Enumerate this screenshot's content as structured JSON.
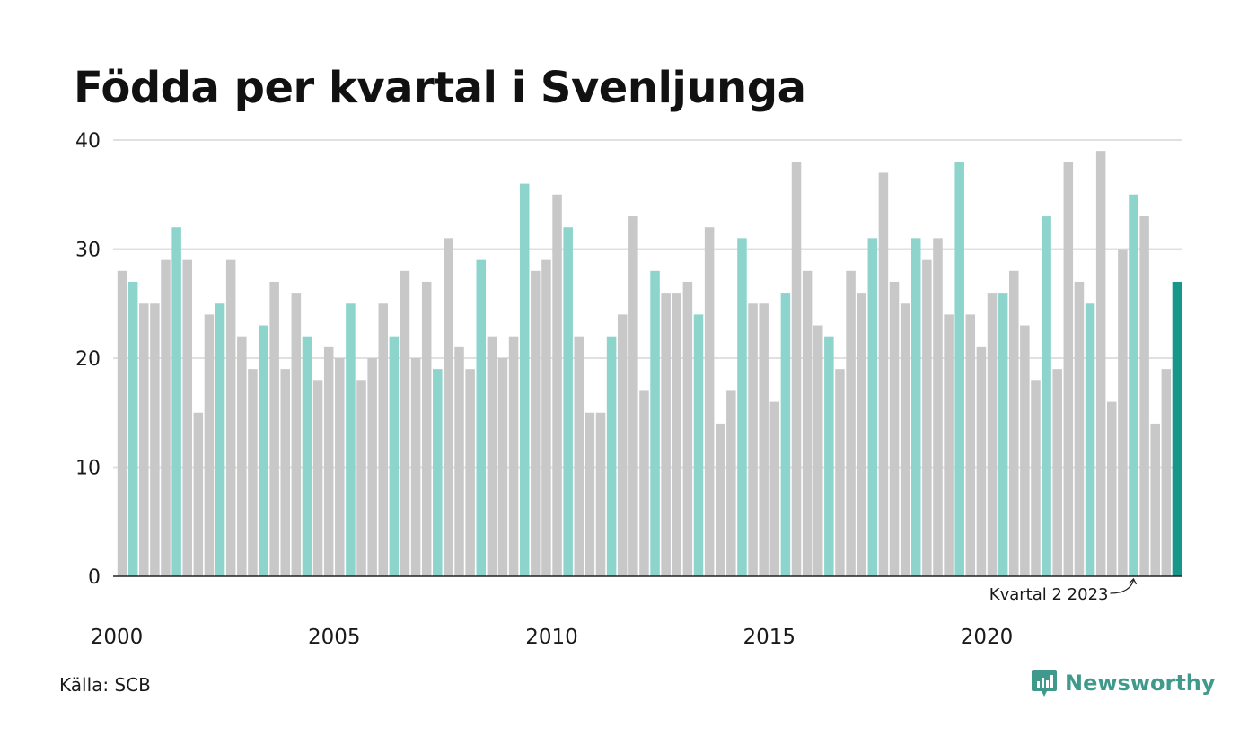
{
  "title": "Födda per kvartal i Svenljunga",
  "source": "Källa: SCB",
  "brand": {
    "name": "Newsworthy",
    "logo_icon": "newsworthy-chart-logo-icon"
  },
  "colors": {
    "gray": "#c8c8c8",
    "q2": "#8dd4cc",
    "latest": "#17978a",
    "grid": "#e0e0e0",
    "axis": "#222222",
    "brand": "#3f9a8c"
  },
  "chart_data": {
    "type": "bar",
    "title": "Födda per kvartal i Svenljunga",
    "xlabel": "",
    "ylabel": "",
    "ylim": [
      0,
      40
    ],
    "yticks": [
      0,
      10,
      20,
      30,
      40
    ],
    "grid": true,
    "start_year": 2000,
    "x_tick_labels": [
      "2000",
      "2005",
      "2010",
      "2015",
      "2020"
    ],
    "highlight_quarter": 2,
    "values": [
      28,
      27,
      25,
      25,
      29,
      32,
      29,
      15,
      24,
      25,
      29,
      22,
      19,
      23,
      27,
      19,
      26,
      22,
      18,
      21,
      20,
      25,
      18,
      20,
      25,
      22,
      28,
      20,
      27,
      19,
      31,
      21,
      19,
      29,
      22,
      20,
      22,
      36,
      28,
      29,
      35,
      32,
      22,
      15,
      15,
      22,
      24,
      33,
      17,
      28,
      26,
      26,
      27,
      24,
      32,
      14,
      17,
      31,
      25,
      25,
      16,
      26,
      38,
      28,
      23,
      22,
      19,
      28,
      26,
      31,
      37,
      27,
      25,
      31,
      29,
      31,
      24,
      38,
      24,
      21,
      26,
      26,
      28,
      23,
      18,
      33,
      19,
      38,
      27,
      25,
      39,
      16,
      30,
      35,
      33,
      14,
      19,
      27
    ],
    "annotation": {
      "text": "Kvartal 2 2023"
    }
  }
}
